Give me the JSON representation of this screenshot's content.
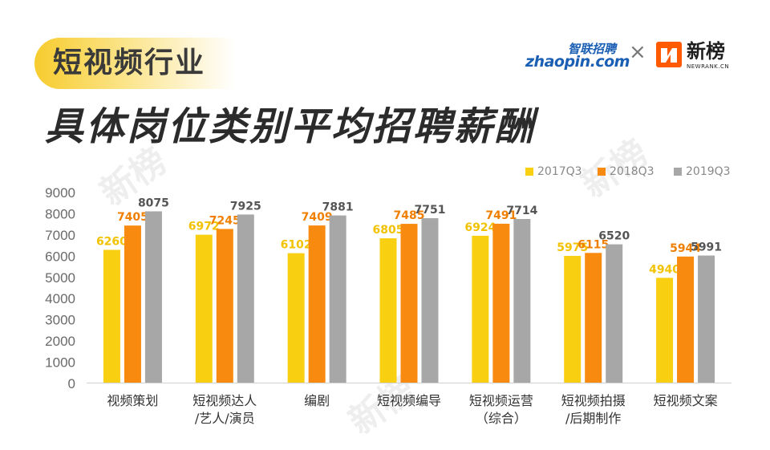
{
  "header": {
    "tag": "短视频行业",
    "title": "具体岗位类别平均招聘薪酬"
  },
  "logos": {
    "zhaopin_cn": "智联招聘",
    "zhaopin_en": "zhaopin.com",
    "cross": "×",
    "newrank_cn": "新榜",
    "newrank_en": "NEWRANK.CN"
  },
  "watermark": {
    "text": "新榜"
  },
  "chart_data": {
    "type": "bar",
    "title": "具体岗位类别平均招聘薪酬",
    "categories": [
      [
        "视频策划"
      ],
      [
        "短视频达人",
        "/艺人/演员"
      ],
      [
        "编剧"
      ],
      [
        "短视频编导"
      ],
      [
        "短视频运营",
        "（综合）"
      ],
      [
        "短视频拍摄",
        "/后期制作"
      ],
      [
        "短视频文案"
      ]
    ],
    "series": [
      {
        "name": "2017Q3",
        "color": "#f9cf12",
        "values": [
          6260,
          6972,
          6102,
          6805,
          6924,
          5975,
          4940
        ]
      },
      {
        "name": "2018Q3",
        "color": "#f98a10",
        "values": [
          7405,
          7245,
          7409,
          7485,
          7491,
          6115,
          5944
        ]
      },
      {
        "name": "2019Q3",
        "color": "#a7a7a7",
        "values": [
          8075,
          7925,
          7881,
          7751,
          7714,
          6520,
          5991
        ]
      }
    ],
    "ylim": [
      0,
      9000
    ],
    "yticks": [
      0,
      1000,
      2000,
      3000,
      4000,
      5000,
      6000,
      7000,
      8000,
      9000
    ],
    "legend_position": "top-right",
    "grid": false
  }
}
